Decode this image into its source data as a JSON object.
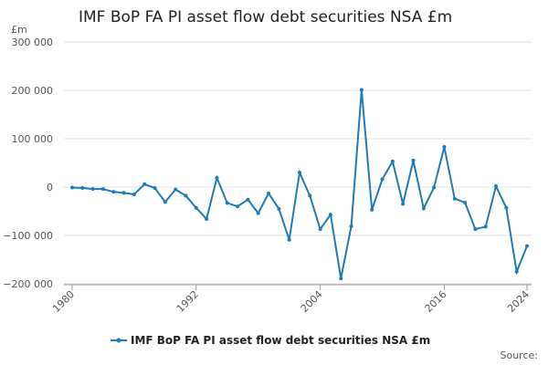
{
  "chart_data": {
    "type": "line",
    "title": "IMF BoP FA PI asset flow debt securities NSA £m",
    "y_label": "£m",
    "source": "Source:",
    "x": [
      1980,
      1981,
      1982,
      1983,
      1984,
      1985,
      1986,
      1987,
      1988,
      1989,
      1990,
      1991,
      1992,
      1993,
      1994,
      1995,
      1996,
      1997,
      1998,
      1999,
      2000,
      2001,
      2002,
      2003,
      2004,
      2005,
      2006,
      2007,
      2008,
      2009,
      2010,
      2011,
      2012,
      2013,
      2014,
      2015,
      2016,
      2017,
      2018,
      2019,
      2020,
      2021,
      2022,
      2023,
      2024
    ],
    "series": [
      {
        "name": "IMF BoP FA PI asset flow debt securities NSA £m",
        "color": "#1f7ab8",
        "values": [
          -1000,
          -2000,
          -4000,
          -4000,
          -10000,
          -12000,
          -15000,
          6000,
          -2000,
          -31000,
          -5000,
          -18000,
          -43000,
          -66000,
          19000,
          -33000,
          -40000,
          -26000,
          -54000,
          -13000,
          -45000,
          -109000,
          30000,
          -18000,
          -87000,
          -57000,
          -189000,
          -81000,
          201000,
          -47000,
          16000,
          53000,
          -35000,
          55000,
          -44000,
          -1000,
          83000,
          -24000,
          -32000,
          -87000,
          -82000,
          2000,
          -43000,
          -175000,
          -122000
        ]
      }
    ],
    "xlim": [
      1980,
      2024
    ],
    "xticks": [
      1980,
      1992,
      2004,
      2016,
      2024
    ],
    "ylim": [
      -200000,
      300000
    ],
    "yticks": [
      {
        "value": -200000,
        "label": "−200 000"
      },
      {
        "value": -100000,
        "label": "−100 000"
      },
      {
        "value": 0,
        "label": "0"
      },
      {
        "value": 100000,
        "label": "100 000"
      },
      {
        "value": 200000,
        "label": "200 000"
      },
      {
        "value": 300000,
        "label": "300 000"
      }
    ],
    "grid": true
  }
}
